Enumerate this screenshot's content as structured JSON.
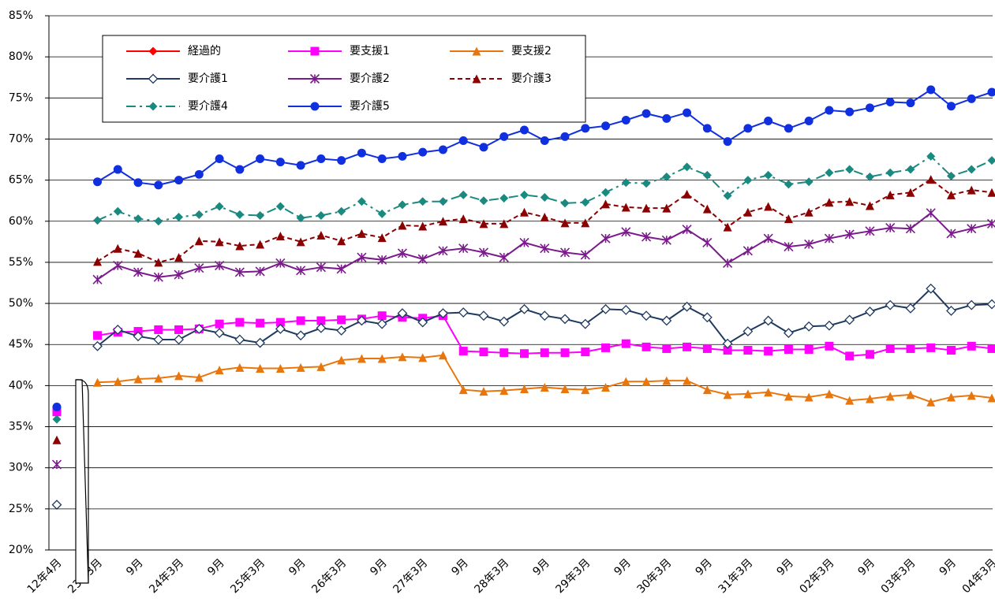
{
  "chart_data": {
    "type": "line",
    "categories": [
      "12年4月",
      null,
      "23年3月",
      null,
      "9月",
      null,
      "24年3月",
      null,
      "9月",
      null,
      "25年3月",
      null,
      "9月",
      null,
      "26年3月",
      null,
      "9月",
      null,
      "27年3月",
      null,
      "9月",
      null,
      "28年3月",
      null,
      "9月",
      null,
      "29年3月",
      null,
      "9月",
      null,
      "30年3月",
      null,
      "9月",
      null,
      "31年3月",
      null,
      "9月",
      null,
      "02年3月",
      null,
      "9月",
      null,
      "03年3月",
      null,
      "9月",
      null,
      "04年3月"
    ],
    "ylim": [
      20,
      85
    ],
    "yticks": [
      {
        "value": 20,
        "label": "20%"
      },
      {
        "value": 25,
        "label": "25%"
      },
      {
        "value": 30,
        "label": "30%"
      },
      {
        "value": 35,
        "label": "35%"
      },
      {
        "value": 40,
        "label": "40%"
      },
      {
        "value": 45,
        "label": "45%"
      },
      {
        "value": 50,
        "label": "50%"
      },
      {
        "value": 55,
        "label": "55%"
      },
      {
        "value": 60,
        "label": "60%"
      },
      {
        "value": 65,
        "label": "65%"
      },
      {
        "value": 70,
        "label": "70%"
      },
      {
        "value": 75,
        "label": "75%"
      },
      {
        "value": 80,
        "label": "80%"
      },
      {
        "value": 85,
        "label": "85%"
      }
    ],
    "grid": true,
    "series": [
      {
        "name": "経過的",
        "color": "#ff0000",
        "marker": "diamond",
        "dash": "solid",
        "values": [
          36.7,
          null,
          null,
          null,
          null,
          null,
          null,
          null,
          null,
          null,
          null,
          null,
          null,
          null,
          null,
          null,
          null,
          null,
          null,
          null,
          null,
          null,
          null,
          null,
          null,
          null,
          null,
          null,
          null,
          null,
          null,
          null,
          null,
          null,
          null,
          null,
          null,
          null,
          null,
          null,
          null,
          null,
          null,
          null,
          null,
          null,
          null
        ]
      },
      {
        "name": "要支援1",
        "color": "#ff00ff",
        "marker": "square",
        "dash": "solid",
        "values": [
          36.8,
          null,
          46.1,
          46.5,
          46.6,
          46.8,
          46.8,
          46.9,
          47.5,
          47.7,
          47.6,
          47.7,
          47.9,
          47.9,
          48.0,
          48.1,
          48.5,
          48.3,
          48.2,
          48.5,
          44.2,
          44.1,
          44.0,
          43.9,
          44.0,
          44.0,
          44.1,
          44.6,
          45.1,
          44.7,
          44.5,
          44.7,
          44.5,
          44.3,
          44.3,
          44.2,
          44.4,
          44.4,
          44.8,
          43.6,
          43.8,
          44.5,
          44.5,
          44.6,
          44.3,
          44.8,
          44.5
        ]
      },
      {
        "name": "要支援2",
        "color": "#e8760c",
        "marker": "triangle",
        "dash": "solid",
        "values": [
          null,
          null,
          40.4,
          40.5,
          40.8,
          40.9,
          41.2,
          41.0,
          41.9,
          42.2,
          42.1,
          42.1,
          42.2,
          42.3,
          43.1,
          43.3,
          43.3,
          43.5,
          43.4,
          43.7,
          39.5,
          39.3,
          39.4,
          39.6,
          39.8,
          39.6,
          39.5,
          39.8,
          40.5,
          40.5,
          40.6,
          40.6,
          39.5,
          38.9,
          39.0,
          39.2,
          38.7,
          38.6,
          39.0,
          38.2,
          38.4,
          38.7,
          38.9,
          38.0,
          38.6,
          38.8,
          38.5
        ]
      },
      {
        "name": "要介護1",
        "color": "#1f3a5f",
        "marker": "diamond-open",
        "dash": "solid",
        "values": [
          25.5,
          null,
          44.8,
          46.8,
          46.0,
          45.6,
          45.6,
          46.9,
          46.4,
          45.6,
          45.2,
          46.9,
          46.1,
          47.0,
          46.7,
          47.9,
          47.5,
          48.8,
          47.7,
          48.8,
          48.9,
          48.5,
          47.8,
          49.3,
          48.5,
          48.1,
          47.5,
          49.3,
          49.2,
          48.5,
          47.9,
          49.6,
          48.3,
          45.1,
          46.6,
          47.9,
          46.4,
          47.2,
          47.3,
          48.0,
          49.0,
          49.8,
          49.4,
          51.8,
          49.1,
          49.8,
          49.9
        ]
      },
      {
        "name": "要介護2",
        "color": "#7b1a8c",
        "marker": "star",
        "dash": "solid",
        "values": [
          30.4,
          null,
          52.9,
          54.6,
          53.8,
          53.2,
          53.5,
          54.3,
          54.6,
          53.8,
          53.9,
          54.9,
          54.0,
          54.4,
          54.2,
          55.6,
          55.3,
          56.1,
          55.4,
          56.4,
          56.7,
          56.2,
          55.6,
          57.4,
          56.7,
          56.2,
          55.9,
          57.9,
          58.7,
          58.1,
          57.7,
          59.0,
          57.4,
          54.9,
          56.4,
          57.9,
          56.9,
          57.2,
          57.9,
          58.4,
          58.8,
          59.2,
          59.1,
          61.0,
          58.5,
          59.1,
          59.7
        ]
      },
      {
        "name": "要介護3",
        "color": "#8b0000",
        "marker": "triangle",
        "dash": "dash",
        "values": [
          33.4,
          null,
          55.1,
          56.7,
          56.1,
          55.0,
          55.6,
          57.6,
          57.5,
          57.0,
          57.2,
          58.2,
          57.5,
          58.3,
          57.6,
          58.5,
          58.0,
          59.5,
          59.4,
          60.0,
          60.3,
          59.7,
          59.7,
          61.1,
          60.5,
          59.8,
          59.8,
          62.1,
          61.7,
          61.6,
          61.6,
          63.3,
          61.5,
          59.3,
          61.1,
          61.8,
          60.3,
          61.1,
          62.3,
          62.4,
          61.9,
          63.2,
          63.5,
          65.1,
          63.2,
          63.8,
          63.5
        ]
      },
      {
        "name": "要介護4",
        "color": "#1a8a80",
        "marker": "diamond",
        "dash": "dashdot",
        "values": [
          35.9,
          null,
          60.1,
          61.2,
          60.3,
          60.0,
          60.5,
          60.8,
          61.8,
          60.8,
          60.7,
          61.8,
          60.4,
          60.7,
          61.2,
          62.4,
          60.9,
          62.0,
          62.4,
          62.4,
          63.2,
          62.5,
          62.8,
          63.2,
          62.9,
          62.2,
          62.3,
          63.5,
          64.7,
          64.6,
          65.4,
          66.6,
          65.6,
          63.1,
          65.0,
          65.6,
          64.5,
          64.8,
          65.9,
          66.3,
          65.4,
          65.9,
          66.3,
          67.9,
          65.5,
          66.3,
          67.4
        ]
      },
      {
        "name": "要介護5",
        "color": "#1030e0",
        "marker": "circle",
        "dash": "solid",
        "values": [
          37.4,
          null,
          64.8,
          66.3,
          64.7,
          64.4,
          65.0,
          65.7,
          67.6,
          66.3,
          67.6,
          67.2,
          66.8,
          67.6,
          67.4,
          68.3,
          67.6,
          67.9,
          68.4,
          68.7,
          69.8,
          69.0,
          70.3,
          71.1,
          69.8,
          70.3,
          71.3,
          71.6,
          72.3,
          73.1,
          72.5,
          73.2,
          71.3,
          69.7,
          71.3,
          72.2,
          71.3,
          72.2,
          73.5,
          73.3,
          73.8,
          74.5,
          74.4,
          76.0,
          74.0,
          74.9,
          75.7
        ]
      }
    ]
  }
}
